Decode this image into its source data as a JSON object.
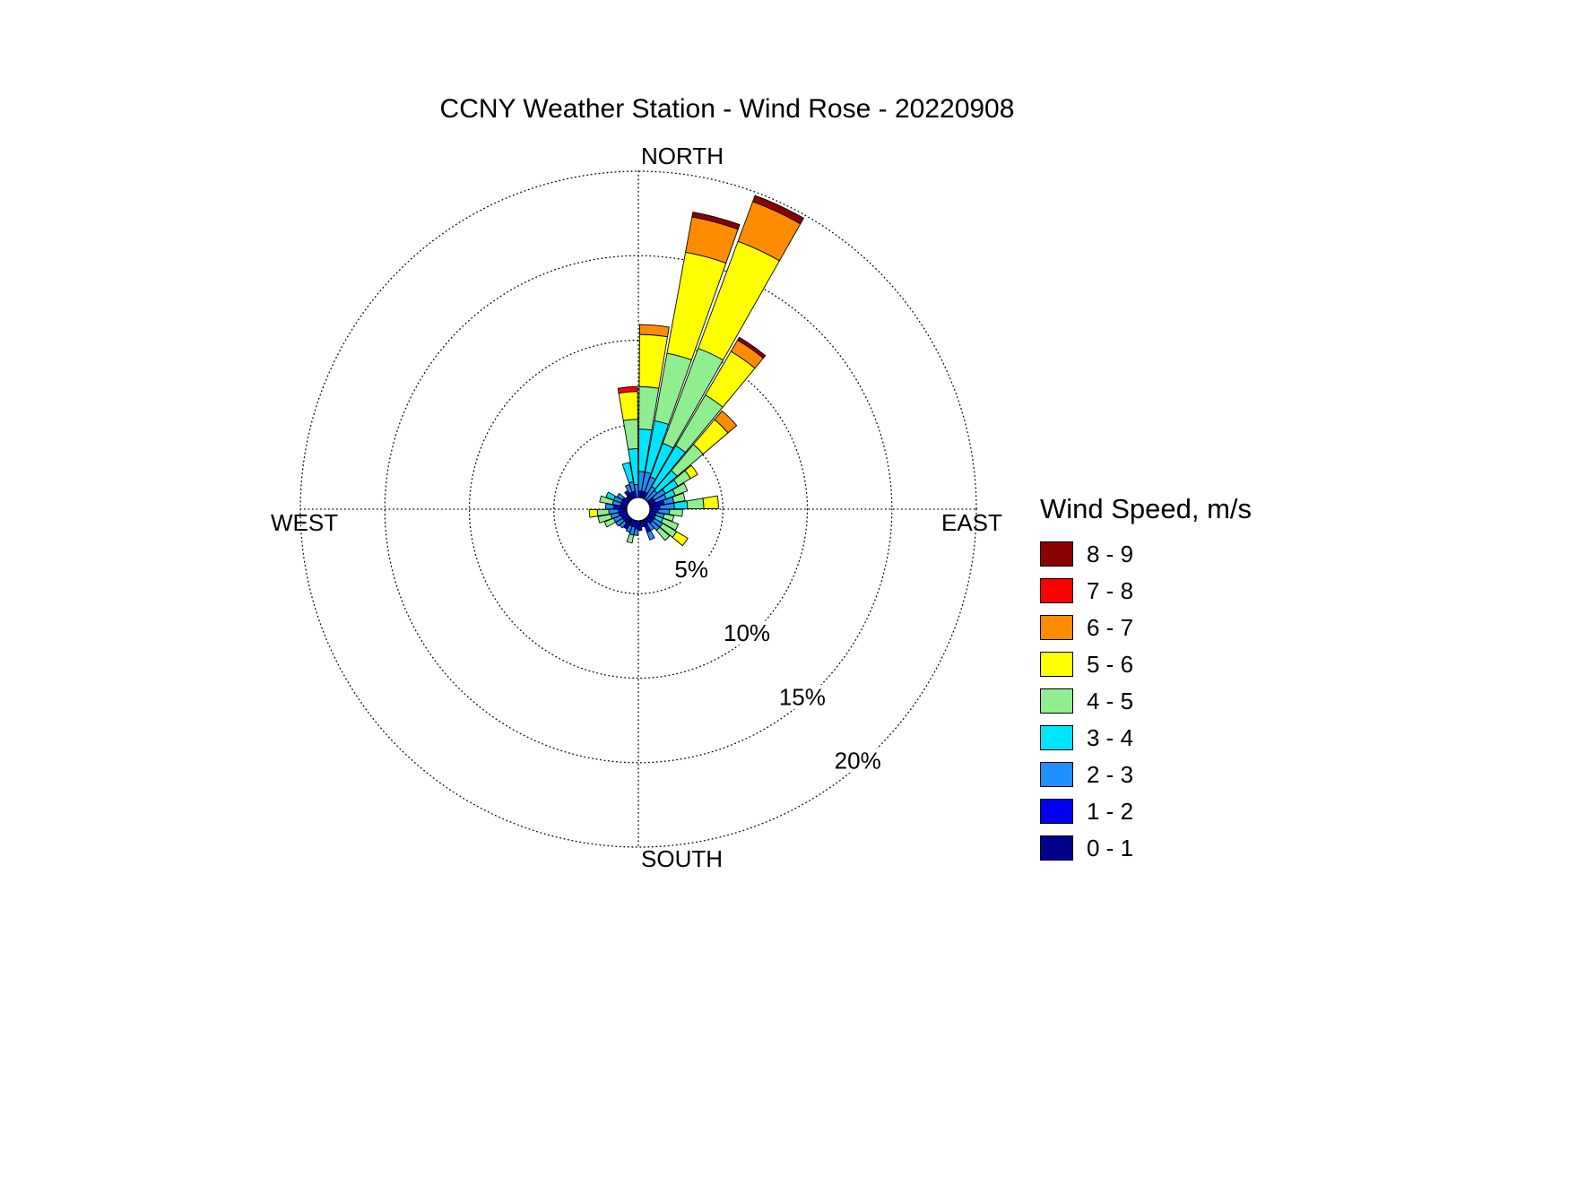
{
  "title": "CCNY Weather Station - Wind Rose - 20220908",
  "compass": {
    "north": "NORTH",
    "east": "EAST",
    "south": "SOUTH",
    "west": "WEST"
  },
  "legend": {
    "title": "Wind Speed, m/s",
    "items": [
      {
        "label": "8 - 9",
        "color": "#8b0000"
      },
      {
        "label": "7 - 8",
        "color": "#ff0000"
      },
      {
        "label": "6 - 7",
        "color": "#ff8c00"
      },
      {
        "label": "5 - 6",
        "color": "#ffff00"
      },
      {
        "label": "4 - 5",
        "color": "#90ee90"
      },
      {
        "label": "3 - 4",
        "color": "#00e5ff"
      },
      {
        "label": "2 - 3",
        "color": "#1e90ff"
      },
      {
        "label": "1 - 2",
        "color": "#0000ee"
      },
      {
        "label": "0 - 1",
        "color": "#00008b"
      }
    ]
  },
  "chart_data": {
    "type": "windrose",
    "title": "CCNY Weather Station - Wind Rose - 20220908",
    "units": "percent of observations",
    "sector_width_deg": 10,
    "rings": [
      {
        "value": 5,
        "label": "5%"
      },
      {
        "value": 10,
        "label": "10%"
      },
      {
        "value": 15,
        "label": "15%"
      },
      {
        "value": 20,
        "label": "20%"
      }
    ],
    "max_ring": 20,
    "speed_bins_mps": [
      "0 - 1",
      "1 - 2",
      "2 - 3",
      "3 - 4",
      "4 - 5",
      "5 - 6",
      "6 - 7",
      "7 - 8",
      "8 - 9"
    ],
    "bin_colors": [
      "#00008b",
      "#0000ee",
      "#1e90ff",
      "#00e5ff",
      "#90ee90",
      "#ffff00",
      "#ff8c00",
      "#ff0000",
      "#8b0000"
    ],
    "petals": [
      {
        "dir_deg": 5,
        "segments": {
          "1 - 2": 0.4,
          "2 - 3": 1.2,
          "3 - 4": 2.6,
          "4 - 5": 2.6,
          "5 - 6": 3.2,
          "6 - 7": 0.6
        }
      },
      {
        "dir_deg": 15,
        "segments": {
          "1 - 2": 0.4,
          "2 - 3": 1.2,
          "3 - 4": 3.2,
          "4 - 5": 4.2,
          "5 - 6": 6.3,
          "6 - 7": 2.2,
          "8 - 9": 0.3
        }
      },
      {
        "dir_deg": 25,
        "segments": {
          "1 - 2": 0.4,
          "2 - 3": 1.0,
          "3 - 4": 2.2,
          "4 - 5": 6.2,
          "5 - 6": 7.0,
          "6 - 7": 2.6,
          "8 - 9": 0.4
        }
      },
      {
        "dir_deg": 35,
        "segments": {
          "2 - 3": 0.9,
          "3 - 4": 2.9,
          "4 - 5": 3.6,
          "5 - 6": 3.1,
          "6 - 7": 0.8,
          "8 - 9": 0.2
        }
      },
      {
        "dir_deg": 45,
        "segments": {
          "2 - 3": 0.8,
          "3 - 4": 1.6,
          "4 - 5": 2.1,
          "5 - 6": 2.0,
          "6 - 7": 0.7
        }
      },
      {
        "dir_deg": 55,
        "segments": {
          "1 - 2": 0.4,
          "2 - 3": 0.8,
          "3 - 4": 0.9,
          "4 - 5": 0.9,
          "5 - 6": 0.5
        }
      },
      {
        "dir_deg": 65,
        "segments": {
          "1 - 2": 0.4,
          "2 - 3": 0.7,
          "3 - 4": 0.6,
          "4 - 5": 0.8
        }
      },
      {
        "dir_deg": 75,
        "segments": {
          "0 - 1": 0.3,
          "1 - 2": 0.6,
          "2 - 3": 0.6,
          "4 - 5": 0.7
        }
      },
      {
        "dir_deg": 85,
        "segments": {
          "1 - 2": 0.6,
          "2 - 3": 0.9,
          "3 - 4": 0.8,
          "4 - 5": 1.0,
          "5 - 6": 0.9
        }
      },
      {
        "dir_deg": 95,
        "segments": {
          "1 - 2": 0.5,
          "2 - 3": 0.7,
          "4 - 5": 0.8
        }
      },
      {
        "dir_deg": 105,
        "segments": {
          "1 - 2": 0.4,
          "2 - 3": 0.5,
          "4 - 5": 0.6
        }
      },
      {
        "dir_deg": 115,
        "segments": {
          "1 - 2": 0.4,
          "3 - 4": 0.5,
          "4 - 5": 1.0
        }
      },
      {
        "dir_deg": 125,
        "segments": {
          "1 - 2": 0.4,
          "2 - 3": 0.6,
          "4 - 5": 1.0,
          "5 - 6": 0.8
        }
      },
      {
        "dir_deg": 135,
        "segments": {
          "1 - 2": 0.4,
          "2 - 3": 0.6,
          "4 - 5": 0.8
        }
      },
      {
        "dir_deg": 145,
        "segments": {
          "1 - 2": 0.3,
          "2 - 3": 0.5
        }
      },
      {
        "dir_deg": 155,
        "segments": {
          "0 - 1": 0.3,
          "1 - 2": 0.5,
          "2 - 3": 0.5
        }
      },
      {
        "dir_deg": 165,
        "segments": {
          "1 - 2": 0.4
        }
      },
      {
        "dir_deg": 175,
        "segments": {
          "0 - 1": 0.3,
          "1 - 2": 0.3
        }
      },
      {
        "dir_deg": 185,
        "segments": {
          "1 - 2": 0.5,
          "2 - 3": 0.4
        }
      },
      {
        "dir_deg": 195,
        "segments": {
          "1 - 2": 0.4,
          "2 - 3": 0.5,
          "4 - 5": 0.5
        }
      },
      {
        "dir_deg": 205,
        "segments": {
          "1 - 2": 0.4,
          "2 - 3": 0.4
        }
      },
      {
        "dir_deg": 215,
        "segments": {
          "0 - 1": 0.3,
          "1 - 2": 0.4
        }
      },
      {
        "dir_deg": 225,
        "segments": {
          "1 - 2": 0.4,
          "2 - 3": 0.4
        }
      },
      {
        "dir_deg": 235,
        "segments": {
          "1 - 2": 0.4,
          "2 - 3": 0.5
        }
      },
      {
        "dir_deg": 245,
        "segments": {
          "1 - 2": 0.4,
          "2 - 3": 0.5,
          "4 - 5": 0.6
        }
      },
      {
        "dir_deg": 255,
        "segments": {
          "1 - 2": 0.5,
          "2 - 3": 0.5,
          "4 - 5": 0.8
        }
      },
      {
        "dir_deg": 265,
        "segments": {
          "1 - 2": 0.5,
          "2 - 3": 0.6,
          "4 - 5": 0.7,
          "5 - 6": 0.5
        }
      },
      {
        "dir_deg": 275,
        "segments": {
          "0 - 1": 0.3,
          "1 - 2": 0.5,
          "2 - 3": 0.5
        }
      },
      {
        "dir_deg": 285,
        "segments": {
          "1 - 2": 0.4,
          "2 - 3": 0.5,
          "4 - 5": 0.8
        }
      },
      {
        "dir_deg": 295,
        "segments": {
          "1 - 2": 0.4,
          "2 - 3": 0.5,
          "3 - 4": 0.5
        }
      },
      {
        "dir_deg": 305,
        "segments": {
          "1 - 2": 0.4,
          "2 - 3": 0.4
        }
      },
      {
        "dir_deg": 315,
        "segments": {
          "1 - 2": 0.3
        }
      },
      {
        "dir_deg": 325,
        "segments": {
          "0 - 1": 0.3,
          "1 - 2": 0.3
        }
      },
      {
        "dir_deg": 335,
        "segments": {
          "1 - 2": 0.4,
          "2 - 3": 0.5
        }
      },
      {
        "dir_deg": 345,
        "segments": {
          "1 - 2": 0.4,
          "2 - 3": 0.6,
          "3 - 4": 1.2
        }
      },
      {
        "dir_deg": 355,
        "segments": {
          "2 - 3": 0.8,
          "3 - 4": 2.2,
          "4 - 5": 1.8,
          "5 - 6": 1.7,
          "7 - 8": 0.3
        }
      }
    ]
  }
}
